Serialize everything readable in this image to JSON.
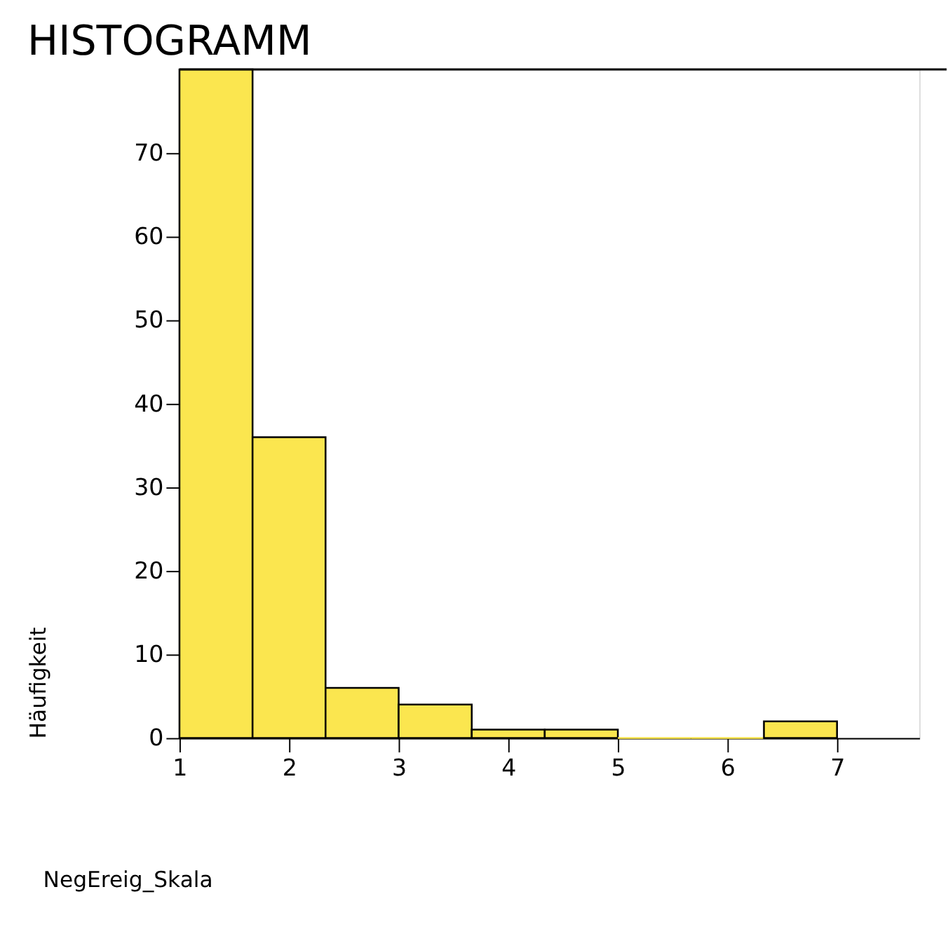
{
  "chart_data": {
    "type": "histogram",
    "title": "HISTOGRAMM",
    "xlabel": "NegEreig_Skala",
    "ylabel": "Häufigkeit",
    "bins": [
      1,
      1.667,
      2.333,
      3,
      3.667,
      4.333,
      5,
      5.667,
      6.333,
      7
    ],
    "values": [
      80,
      36,
      6,
      4,
      1,
      1,
      0,
      0,
      2
    ],
    "color": "#fbe64f",
    "xlim": [
      1,
      7.75
    ],
    "xticks": [
      1,
      2,
      3,
      4,
      5,
      6,
      7
    ],
    "ylim": [
      0,
      80
    ],
    "yticks": [
      0,
      10,
      20,
      30,
      40,
      50,
      60,
      70
    ],
    "grid": false
  }
}
